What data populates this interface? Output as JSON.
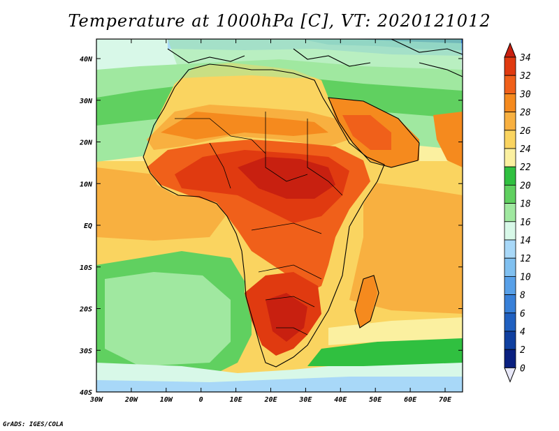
{
  "title": "Temperature at 1000hPa [C], VT: 2020121012",
  "footer": "GrADS: IGES/COLA",
  "lat_labels": [
    "40N",
    "30N",
    "20N",
    "10N",
    "EQ",
    "10S",
    "20S",
    "30S",
    "40S"
  ],
  "lon_labels": [
    "30W",
    "20W",
    "10W",
    "0",
    "10E",
    "20E",
    "30E",
    "40E",
    "50E",
    "60E",
    "70E"
  ],
  "colorbar": {
    "labels": [
      "34",
      "32",
      "30",
      "28",
      "26",
      "24",
      "22",
      "20",
      "18",
      "16",
      "14",
      "12",
      "10",
      "8",
      "6",
      "4",
      "2",
      "0"
    ],
    "colors": [
      "#c82010",
      "#e03a10",
      "#f0601a",
      "#f58a1e",
      "#f8b040",
      "#fad460",
      "#fbf0a0",
      "#30c040",
      "#60d060",
      "#a0e8a0",
      "#d8f8e8",
      "#a8d8f8",
      "#80c0f0",
      "#58a0e8",
      "#3880d8",
      "#2060c0",
      "#1040a0",
      "#0a2080"
    ]
  },
  "colors": {
    "ocean_warm": "#fad460",
    "ocean_mid": "#fbf0a0",
    "hot": "#e03a10"
  }
}
